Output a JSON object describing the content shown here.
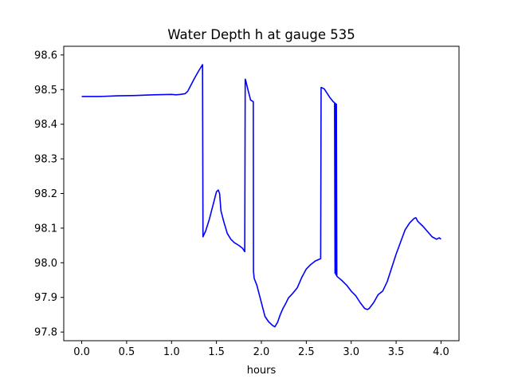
{
  "chart_data": {
    "type": "line",
    "title": "Water Depth h at gauge 535",
    "xlabel": "hours",
    "ylabel": "",
    "xlim": [
      -0.2,
      4.2
    ],
    "ylim": [
      97.775,
      98.625
    ],
    "grid": false,
    "line_color": "#0000ff",
    "x_ticks": [
      0.0,
      0.5,
      1.0,
      1.5,
      2.0,
      2.5,
      3.0,
      3.5,
      4.0
    ],
    "x_tick_labels": [
      "0.0",
      "0.5",
      "1.0",
      "1.5",
      "2.0",
      "2.5",
      "3.0",
      "3.5",
      "4.0"
    ],
    "y_ticks": [
      97.8,
      97.9,
      98.0,
      98.1,
      98.2,
      98.3,
      98.4,
      98.5,
      98.6
    ],
    "y_tick_labels": [
      "97.8",
      "97.9",
      "98.0",
      "98.1",
      "98.2",
      "98.3",
      "98.4",
      "98.5",
      "98.6"
    ],
    "series": [
      {
        "x": [
          0.0,
          0.2,
          0.4,
          0.6,
          0.8,
          1.0,
          1.05,
          1.1,
          1.15,
          1.18,
          1.2,
          1.25,
          1.3,
          1.345,
          1.35,
          1.355,
          1.38,
          1.42,
          1.46,
          1.5,
          1.52,
          1.535,
          1.55,
          1.58,
          1.62,
          1.66,
          1.7,
          1.75,
          1.79,
          1.815,
          1.82,
          1.825,
          1.85,
          1.88,
          1.91,
          1.912,
          1.92,
          1.95,
          1.98,
          2.01,
          2.04,
          2.08,
          2.12,
          2.15,
          2.18,
          2.21,
          2.24,
          2.27,
          2.3,
          2.35,
          2.4,
          2.45,
          2.5,
          2.55,
          2.6,
          2.66,
          2.665,
          2.67,
          2.7,
          2.73,
          2.76,
          2.8,
          2.815,
          2.82,
          2.825,
          2.83,
          2.835,
          2.84,
          2.845,
          2.9,
          2.95,
          3.0,
          3.05,
          3.1,
          3.15,
          3.18,
          3.2,
          3.25,
          3.3,
          3.35,
          3.4,
          3.45,
          3.5,
          3.55,
          3.6,
          3.65,
          3.7,
          3.72,
          3.74,
          3.76,
          3.8,
          3.85,
          3.9,
          3.95,
          3.98,
          4.0
        ],
        "y": [
          98.48,
          98.48,
          98.482,
          98.483,
          98.485,
          98.486,
          98.485,
          98.486,
          98.488,
          98.495,
          98.505,
          98.53,
          98.553,
          98.572,
          98.075,
          98.078,
          98.092,
          98.125,
          98.165,
          98.205,
          98.21,
          98.2,
          98.15,
          98.12,
          98.085,
          98.068,
          98.058,
          98.05,
          98.042,
          98.032,
          98.53,
          98.527,
          98.5,
          98.47,
          98.465,
          97.975,
          97.955,
          97.935,
          97.905,
          97.875,
          97.845,
          97.83,
          97.82,
          97.815,
          97.828,
          97.85,
          97.868,
          97.882,
          97.898,
          97.912,
          97.928,
          97.958,
          97.982,
          97.995,
          98.005,
          98.012,
          98.506,
          98.506,
          98.502,
          98.49,
          98.478,
          98.465,
          98.462,
          97.97,
          98.46,
          97.965,
          98.458,
          97.962,
          97.96,
          97.948,
          97.935,
          97.918,
          97.905,
          97.885,
          97.868,
          97.865,
          97.868,
          97.885,
          97.908,
          97.918,
          97.945,
          97.985,
          98.025,
          98.06,
          98.095,
          98.115,
          98.128,
          98.13,
          98.12,
          98.115,
          98.105,
          98.09,
          98.075,
          98.068,
          98.072,
          98.068
        ]
      }
    ]
  }
}
